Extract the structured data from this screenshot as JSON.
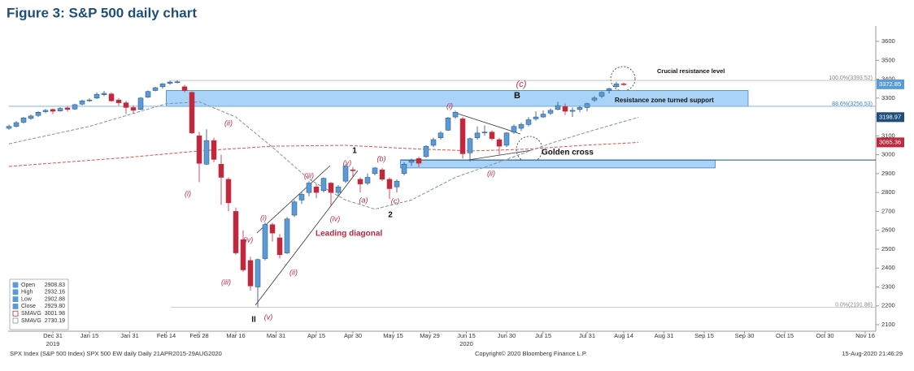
{
  "chart_data": {
    "type": "candlestick",
    "title": "Figure 3: S&P 500 daily chart",
    "xlim": [
      -12,
      224
    ],
    "xticks": [
      {
        "value": 0,
        "label": "Dec 31"
      },
      {
        "value": 10,
        "label": "Jan 15"
      },
      {
        "value": 21,
        "label": "Jan 31"
      },
      {
        "value": 31,
        "label": "Feb 14"
      },
      {
        "value": 40,
        "label": "Feb 28"
      },
      {
        "value": 50,
        "label": "Mar 16"
      },
      {
        "value": 61,
        "label": "Mar 31"
      },
      {
        "value": 72,
        "label": "Apr 15"
      },
      {
        "value": 82,
        "label": "Apr 30"
      },
      {
        "value": 93,
        "label": "May 15"
      },
      {
        "value": 103,
        "label": "May 29"
      },
      {
        "value": 113,
        "label": "Jun 15"
      },
      {
        "value": 124,
        "label": "Jun 30"
      },
      {
        "value": 134,
        "label": "Jul 15"
      },
      {
        "value": 146,
        "label": "Jul 31"
      },
      {
        "value": 156,
        "label": "Aug 14"
      },
      {
        "value": 167,
        "label": "Aug 31"
      },
      {
        "value": 178,
        "label": "Sep 15"
      },
      {
        "value": 189,
        "label": "Sep 30"
      },
      {
        "value": 200,
        "label": "Oct 15"
      },
      {
        "value": 211,
        "label": "Oct 30"
      },
      {
        "value": 222,
        "label": "Nov 16"
      }
    ],
    "year_labels": [
      {
        "value": 0,
        "label": "2019"
      },
      {
        "value": 113,
        "label": "2020"
      }
    ],
    "ylim": [
      2050,
      3680
    ],
    "yticks": [
      2100,
      2200,
      2300,
      2400,
      2500,
      2600,
      2700,
      2800,
      2900,
      3000,
      3100,
      3200,
      3300,
      3400,
      3500,
      3600
    ],
    "up_color": "#5b9bd5",
    "down_color": "#c0283d",
    "x": [
      -12,
      -10,
      -8,
      -6,
      -4,
      -2,
      0,
      2,
      4,
      6,
      8,
      10,
      12,
      14,
      16,
      18,
      20,
      22,
      24,
      26,
      28,
      30,
      32,
      34,
      36,
      38,
      40,
      42,
      44,
      46,
      48,
      50,
      52,
      54,
      56,
      58,
      60,
      62,
      64,
      66,
      68,
      70,
      72,
      74,
      76,
      78,
      80,
      82,
      84,
      86,
      88,
      90,
      92,
      94,
      96,
      98,
      100,
      102,
      104,
      106,
      108,
      110,
      112,
      114,
      116,
      118,
      120,
      122,
      124,
      126,
      128,
      130,
      132,
      134,
      136,
      138,
      140,
      142,
      144,
      146,
      148,
      150,
      152,
      154,
      156
    ],
    "ohlc": [
      [
        3140,
        3160,
        3132,
        3150
      ],
      [
        3150,
        3178,
        3145,
        3170
      ],
      [
        3172,
        3200,
        3165,
        3195
      ],
      [
        3192,
        3212,
        3185,
        3205
      ],
      [
        3208,
        3230,
        3200,
        3225
      ],
      [
        3228,
        3242,
        3220,
        3235
      ],
      [
        3240,
        3245,
        3215,
        3230
      ],
      [
        3232,
        3252,
        3228,
        3245
      ],
      [
        3248,
        3255,
        3228,
        3240
      ],
      [
        3242,
        3270,
        3238,
        3265
      ],
      [
        3268,
        3292,
        3262,
        3285
      ],
      [
        3288,
        3298,
        3280,
        3290
      ],
      [
        3300,
        3330,
        3295,
        3320
      ],
      [
        3318,
        3338,
        3310,
        3325
      ],
      [
        3322,
        3330,
        3280,
        3285
      ],
      [
        3290,
        3300,
        3260,
        3275
      ],
      [
        3275,
        3285,
        3215,
        3250
      ],
      [
        3250,
        3262,
        3218,
        3235
      ],
      [
        3240,
        3305,
        3235,
        3300
      ],
      [
        3305,
        3340,
        3300,
        3335
      ],
      [
        3340,
        3360,
        3335,
        3355
      ],
      [
        3360,
        3380,
        3350,
        3375
      ],
      [
        3378,
        3393,
        3370,
        3385
      ],
      [
        3385,
        3393,
        3378,
        3386
      ],
      [
        3360,
        3370,
        3330,
        3340
      ],
      [
        3330,
        3335,
        3110,
        3115
      ],
      [
        3100,
        3120,
        2855,
        2954
      ],
      [
        2950,
        3135,
        2945,
        3075
      ],
      [
        3075,
        3090,
        2960,
        2975
      ],
      [
        2950,
        3000,
        2735,
        2880
      ],
      [
        2870,
        2880,
        2700,
        2745
      ],
      [
        2700,
        2720,
        2470,
        2480
      ],
      [
        2550,
        2600,
        2380,
        2390
      ],
      [
        2440,
        2460,
        2280,
        2305
      ],
      [
        2300,
        2450,
        2192,
        2445
      ],
      [
        2450,
        2640,
        2440,
        2630
      ],
      [
        2630,
        2640,
        2540,
        2585
      ],
      [
        2560,
        2580,
        2450,
        2470
      ],
      [
        2480,
        2670,
        2475,
        2660
      ],
      [
        2680,
        2760,
        2670,
        2750
      ],
      [
        2760,
        2800,
        2740,
        2790
      ],
      [
        2800,
        2860,
        2780,
        2850
      ],
      [
        2830,
        2845,
        2770,
        2800
      ],
      [
        2810,
        2880,
        2800,
        2875
      ],
      [
        2850,
        2855,
        2730,
        2800
      ],
      [
        2800,
        2840,
        2780,
        2830
      ],
      [
        2860,
        2950,
        2850,
        2940
      ],
      [
        2920,
        2935,
        2880,
        2915
      ],
      [
        2870,
        2880,
        2800,
        2845
      ],
      [
        2850,
        2900,
        2840,
        2880
      ],
      [
        2900,
        2935,
        2890,
        2930
      ],
      [
        2920,
        2930,
        2860,
        2870
      ],
      [
        2870,
        2880,
        2765,
        2820
      ],
      [
        2830,
        2870,
        2800,
        2860
      ],
      [
        2900,
        2960,
        2890,
        2950
      ],
      [
        2960,
        2980,
        2940,
        2970
      ],
      [
        2980,
        2990,
        2935,
        2955
      ],
      [
        2990,
        3050,
        2985,
        3045
      ],
      [
        3050,
        3090,
        3040,
        3080
      ],
      [
        3090,
        3125,
        3080,
        3115
      ],
      [
        3130,
        3200,
        3125,
        3195
      ],
      [
        3200,
        3233,
        3190,
        3225
      ],
      [
        3190,
        3200,
        2980,
        3005
      ],
      [
        3010,
        3090,
        2965,
        3085
      ],
      [
        3090,
        3150,
        3080,
        3115
      ],
      [
        3120,
        3155,
        3100,
        3120
      ],
      [
        3120,
        3130,
        3075,
        3085
      ],
      [
        3080,
        3090,
        3000,
        3045
      ],
      [
        3050,
        3120,
        3040,
        3115
      ],
      [
        3120,
        3160,
        3110,
        3150
      ],
      [
        3140,
        3170,
        3125,
        3160
      ],
      [
        3160,
        3200,
        3150,
        3185
      ],
      [
        3190,
        3230,
        3180,
        3200
      ],
      [
        3200,
        3235,
        3195,
        3215
      ],
      [
        3220,
        3245,
        3210,
        3235
      ],
      [
        3240,
        3280,
        3235,
        3260
      ],
      [
        3255,
        3270,
        3210,
        3230
      ],
      [
        3230,
        3250,
        3200,
        3235
      ],
      [
        3240,
        3260,
        3225,
        3250
      ],
      [
        3250,
        3275,
        3230,
        3270
      ],
      [
        3290,
        3310,
        3280,
        3300
      ],
      [
        3310,
        3335,
        3300,
        3330
      ],
      [
        3340,
        3355,
        3325,
        3350
      ],
      [
        3360,
        3387,
        3355,
        3375
      ],
      [
        3375,
        3382,
        3365,
        3372
      ]
    ],
    "last_price": {
      "value": 3372.85,
      "label": "3372.85",
      "color": "#5b9bd5"
    },
    "series": [
      {
        "name": "SMAVG",
        "color": "#7f93a8",
        "last": {
          "value": 3198.97,
          "label": "3198.97"
        },
        "tag_color": "#1f4e79",
        "x": [
          -12,
          10,
          31,
          40,
          50,
          60,
          70,
          80,
          88,
          98,
          110,
          124,
          136,
          146,
          160
        ],
        "values": [
          3058,
          3150,
          3270,
          3280,
          3200,
          3040,
          2870,
          2760,
          2712,
          2760,
          2880,
          2975,
          3060,
          3120,
          3198
        ]
      },
      {
        "name": "SMAVG",
        "color": "#d9534f",
        "last": {
          "value": 3065.36,
          "label": "3065.36"
        },
        "tag_color": "#c0283d",
        "x": [
          -12,
          20,
          40,
          60,
          80,
          100,
          115,
          130,
          145,
          160
        ],
        "values": [
          2938,
          2985,
          3020,
          3045,
          3050,
          3030,
          3020,
          3030,
          3050,
          3065
        ]
      }
    ],
    "levels": [
      {
        "value": 3393.52,
        "label": "100.0%(3393.52)"
      },
      {
        "value": 3256.53,
        "label": "88.6%(3256.53)"
      },
      {
        "value": 2191.86,
        "label": "0.0%(2191.86)"
      }
    ],
    "zones": [
      {
        "x": [
          31,
          190
        ],
        "y": [
          3256.53,
          3340
        ]
      },
      {
        "x": [
          95,
          181
        ],
        "y": [
          2930,
          2972
        ]
      }
    ],
    "annotations": [
      "(c)",
      "B",
      "Crucial resistance level",
      "Resistance zone turned support",
      "(i)",
      "Golden cross",
      "(ii)",
      "1",
      "(v)",
      "(b)",
      "(iii)",
      "(a)",
      "(c)",
      "2",
      "(iv)",
      "(i)",
      "Leading diagonal",
      "(iv)",
      "(ii)",
      "(iii)",
      "(v)",
      "II",
      "(i)",
      "(ii)"
    ],
    "legend": [
      {
        "label": "Open",
        "value": "2908.83"
      },
      {
        "label": "High",
        "value": "2932.16"
      },
      {
        "label": "Low",
        "value": "2902.88"
      },
      {
        "label": "Close",
        "value": "2929.80"
      },
      {
        "label": "SMAVG",
        "value": "3001.98"
      },
      {
        "label": "SMAVG",
        "value": "2730.19"
      }
    ],
    "source": "SPX Index (S&P 500 Index) SPX 500 EW daily  Daily 21APR2015-29AUG2020",
    "copyright": "Copyright© 2020 Bloomberg Finance L.P.",
    "timestamp": "15-Aug-2020 21:46:29"
  }
}
